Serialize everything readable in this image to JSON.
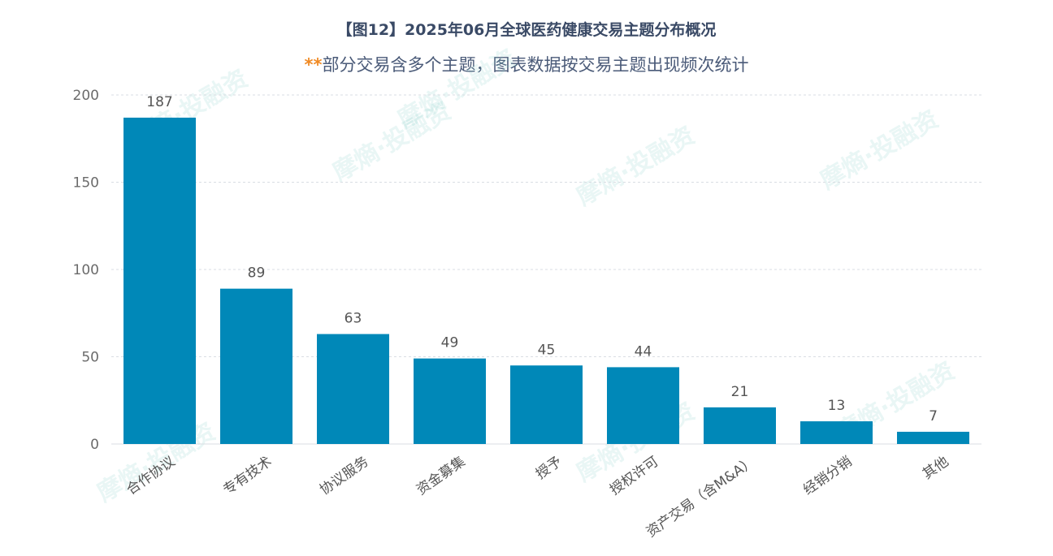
{
  "header": {
    "title": "【图12】2025年06月全球医药健康交易主题分布概况",
    "subtitle_mark": "**",
    "subtitle_text": "部分交易含多个主题，图表数据按交易主题出现频次统计"
  },
  "watermark": {
    "text": "摩熵·投融资"
  },
  "colors": {
    "bar": "#0088b8",
    "grid": "#d9dde3",
    "accent": "#f08a24"
  },
  "chart_data": {
    "type": "bar",
    "categories": [
      "合作协议",
      "专有技术",
      "协议服务",
      "资金募集",
      "授予",
      "授权许可",
      "资产交易（含M&A）",
      "经销分销",
      "其他"
    ],
    "values": [
      187,
      89,
      63,
      49,
      45,
      44,
      21,
      13,
      7
    ],
    "yticks": [
      0,
      50,
      100,
      150,
      200
    ],
    "ylim": [
      0,
      200
    ],
    "grid": true,
    "data_labels": true
  }
}
